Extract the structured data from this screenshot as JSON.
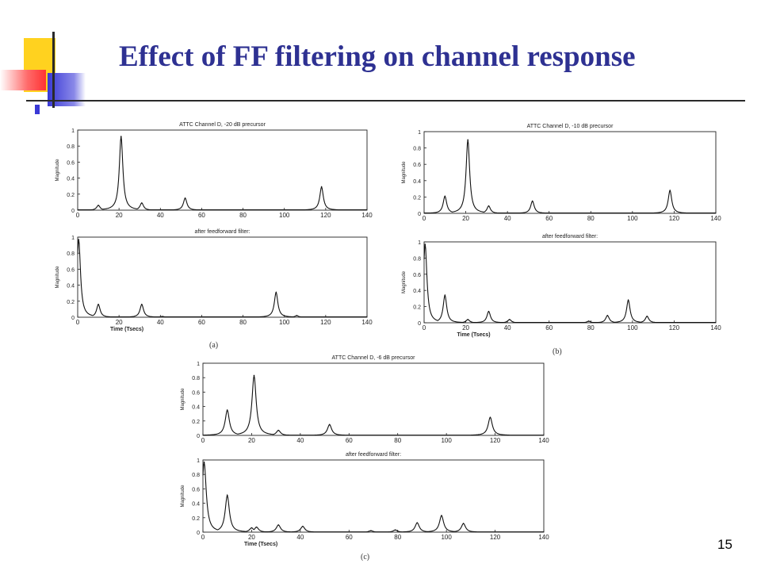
{
  "slide": {
    "title": "Effect of FF filtering on channel response",
    "page_number": "15",
    "captions": [
      "(a)",
      "(b)",
      "(c)"
    ],
    "colors": {
      "title": "#2e3192",
      "accent_yellow": "#ffd21f",
      "accent_blue": "#3a39d6",
      "accent_red": "#ff3333",
      "plot_line": "#111111"
    }
  },
  "chart_data": [
    {
      "type": "line",
      "title": "ATTC Channel D, -20 dB precursor",
      "xlabel": "",
      "ylabel": "Magnitude",
      "xlim": [
        0,
        140
      ],
      "ylim": [
        0,
        1
      ],
      "xticks": [
        0,
        20,
        40,
        60,
        80,
        100,
        120,
        140
      ],
      "yticks": [
        0,
        0.2,
        0.4,
        0.6,
        0.8,
        1
      ],
      "peaks": [
        {
          "x": 10,
          "y": 0.06
        },
        {
          "x": 21,
          "y": 0.92
        },
        {
          "x": 31,
          "y": 0.09
        },
        {
          "x": 52,
          "y": 0.15
        },
        {
          "x": 118,
          "y": 0.29
        }
      ]
    },
    {
      "type": "line",
      "title": "after feedforward filter:",
      "xlabel": "Time (Tsecs)",
      "ylabel": "Magnitude",
      "xlim": [
        0,
        140
      ],
      "ylim": [
        0,
        1
      ],
      "xticks": [
        0,
        20,
        40,
        60,
        80,
        100,
        120,
        140
      ],
      "yticks": [
        0,
        0.2,
        0.4,
        0.6,
        0.8,
        1
      ],
      "peaks": [
        {
          "x": 0.5,
          "y": 0.97
        },
        {
          "x": 10,
          "y": 0.16
        },
        {
          "x": 31,
          "y": 0.16
        },
        {
          "x": 41,
          "y": 0.01
        },
        {
          "x": 96,
          "y": 0.31
        },
        {
          "x": 106,
          "y": 0.02
        }
      ]
    },
    {
      "type": "line",
      "title": "ATTC Channel D, -10 dB precursor",
      "xlabel": "",
      "ylabel": "Magnitude",
      "xlim": [
        0,
        140
      ],
      "ylim": [
        0,
        1
      ],
      "xticks": [
        0,
        20,
        40,
        60,
        80,
        100,
        120,
        140
      ],
      "yticks": [
        0,
        0.2,
        0.4,
        0.6,
        0.8,
        1
      ],
      "peaks": [
        {
          "x": 10,
          "y": 0.21
        },
        {
          "x": 21,
          "y": 0.9
        },
        {
          "x": 31,
          "y": 0.09
        },
        {
          "x": 52,
          "y": 0.15
        },
        {
          "x": 118,
          "y": 0.28
        }
      ]
    },
    {
      "type": "line",
      "title": "after feedforward filter:",
      "xlabel": "Time (Tsecs)",
      "ylabel": "Magnitude",
      "xlim": [
        0,
        140
      ],
      "ylim": [
        0,
        1
      ],
      "xticks": [
        0,
        20,
        40,
        60,
        80,
        100,
        120,
        140
      ],
      "yticks": [
        0,
        0.2,
        0.4,
        0.6,
        0.8,
        1
      ],
      "peaks": [
        {
          "x": 0.5,
          "y": 0.97
        },
        {
          "x": 10,
          "y": 0.34
        },
        {
          "x": 21,
          "y": 0.04
        },
        {
          "x": 31,
          "y": 0.14
        },
        {
          "x": 41,
          "y": 0.04
        },
        {
          "x": 79,
          "y": 0.02
        },
        {
          "x": 88,
          "y": 0.09
        },
        {
          "x": 98,
          "y": 0.28
        },
        {
          "x": 107,
          "y": 0.08
        }
      ]
    },
    {
      "type": "line",
      "title": "ATTC Channel D, -6 dB precursor",
      "xlabel": "",
      "ylabel": "Magnitude",
      "xlim": [
        0,
        140
      ],
      "ylim": [
        0,
        1
      ],
      "xticks": [
        0,
        20,
        40,
        60,
        80,
        100,
        120,
        140
      ],
      "yticks": [
        0,
        0.2,
        0.4,
        0.6,
        0.8,
        1
      ],
      "peaks": [
        {
          "x": 10,
          "y": 0.35
        },
        {
          "x": 21,
          "y": 0.83
        },
        {
          "x": 31,
          "y": 0.07
        },
        {
          "x": 52,
          "y": 0.15
        },
        {
          "x": 118,
          "y": 0.25
        }
      ]
    },
    {
      "type": "line",
      "title": "after feedforward filter:",
      "xlabel": "Time (Tsecs)",
      "ylabel": "Magnitude",
      "xlim": [
        0,
        140
      ],
      "ylim": [
        0,
        1
      ],
      "xticks": [
        0,
        20,
        40,
        60,
        80,
        100,
        120,
        140
      ],
      "yticks": [
        0,
        0.2,
        0.4,
        0.6,
        0.8,
        1
      ],
      "peaks": [
        {
          "x": 0.5,
          "y": 0.97
        },
        {
          "x": 10,
          "y": 0.51
        },
        {
          "x": 20,
          "y": 0.06
        },
        {
          "x": 22,
          "y": 0.07
        },
        {
          "x": 31,
          "y": 0.1
        },
        {
          "x": 41,
          "y": 0.08
        },
        {
          "x": 69,
          "y": 0.02
        },
        {
          "x": 79,
          "y": 0.03
        },
        {
          "x": 88,
          "y": 0.13
        },
        {
          "x": 98,
          "y": 0.23
        },
        {
          "x": 107,
          "y": 0.12
        }
      ]
    }
  ]
}
